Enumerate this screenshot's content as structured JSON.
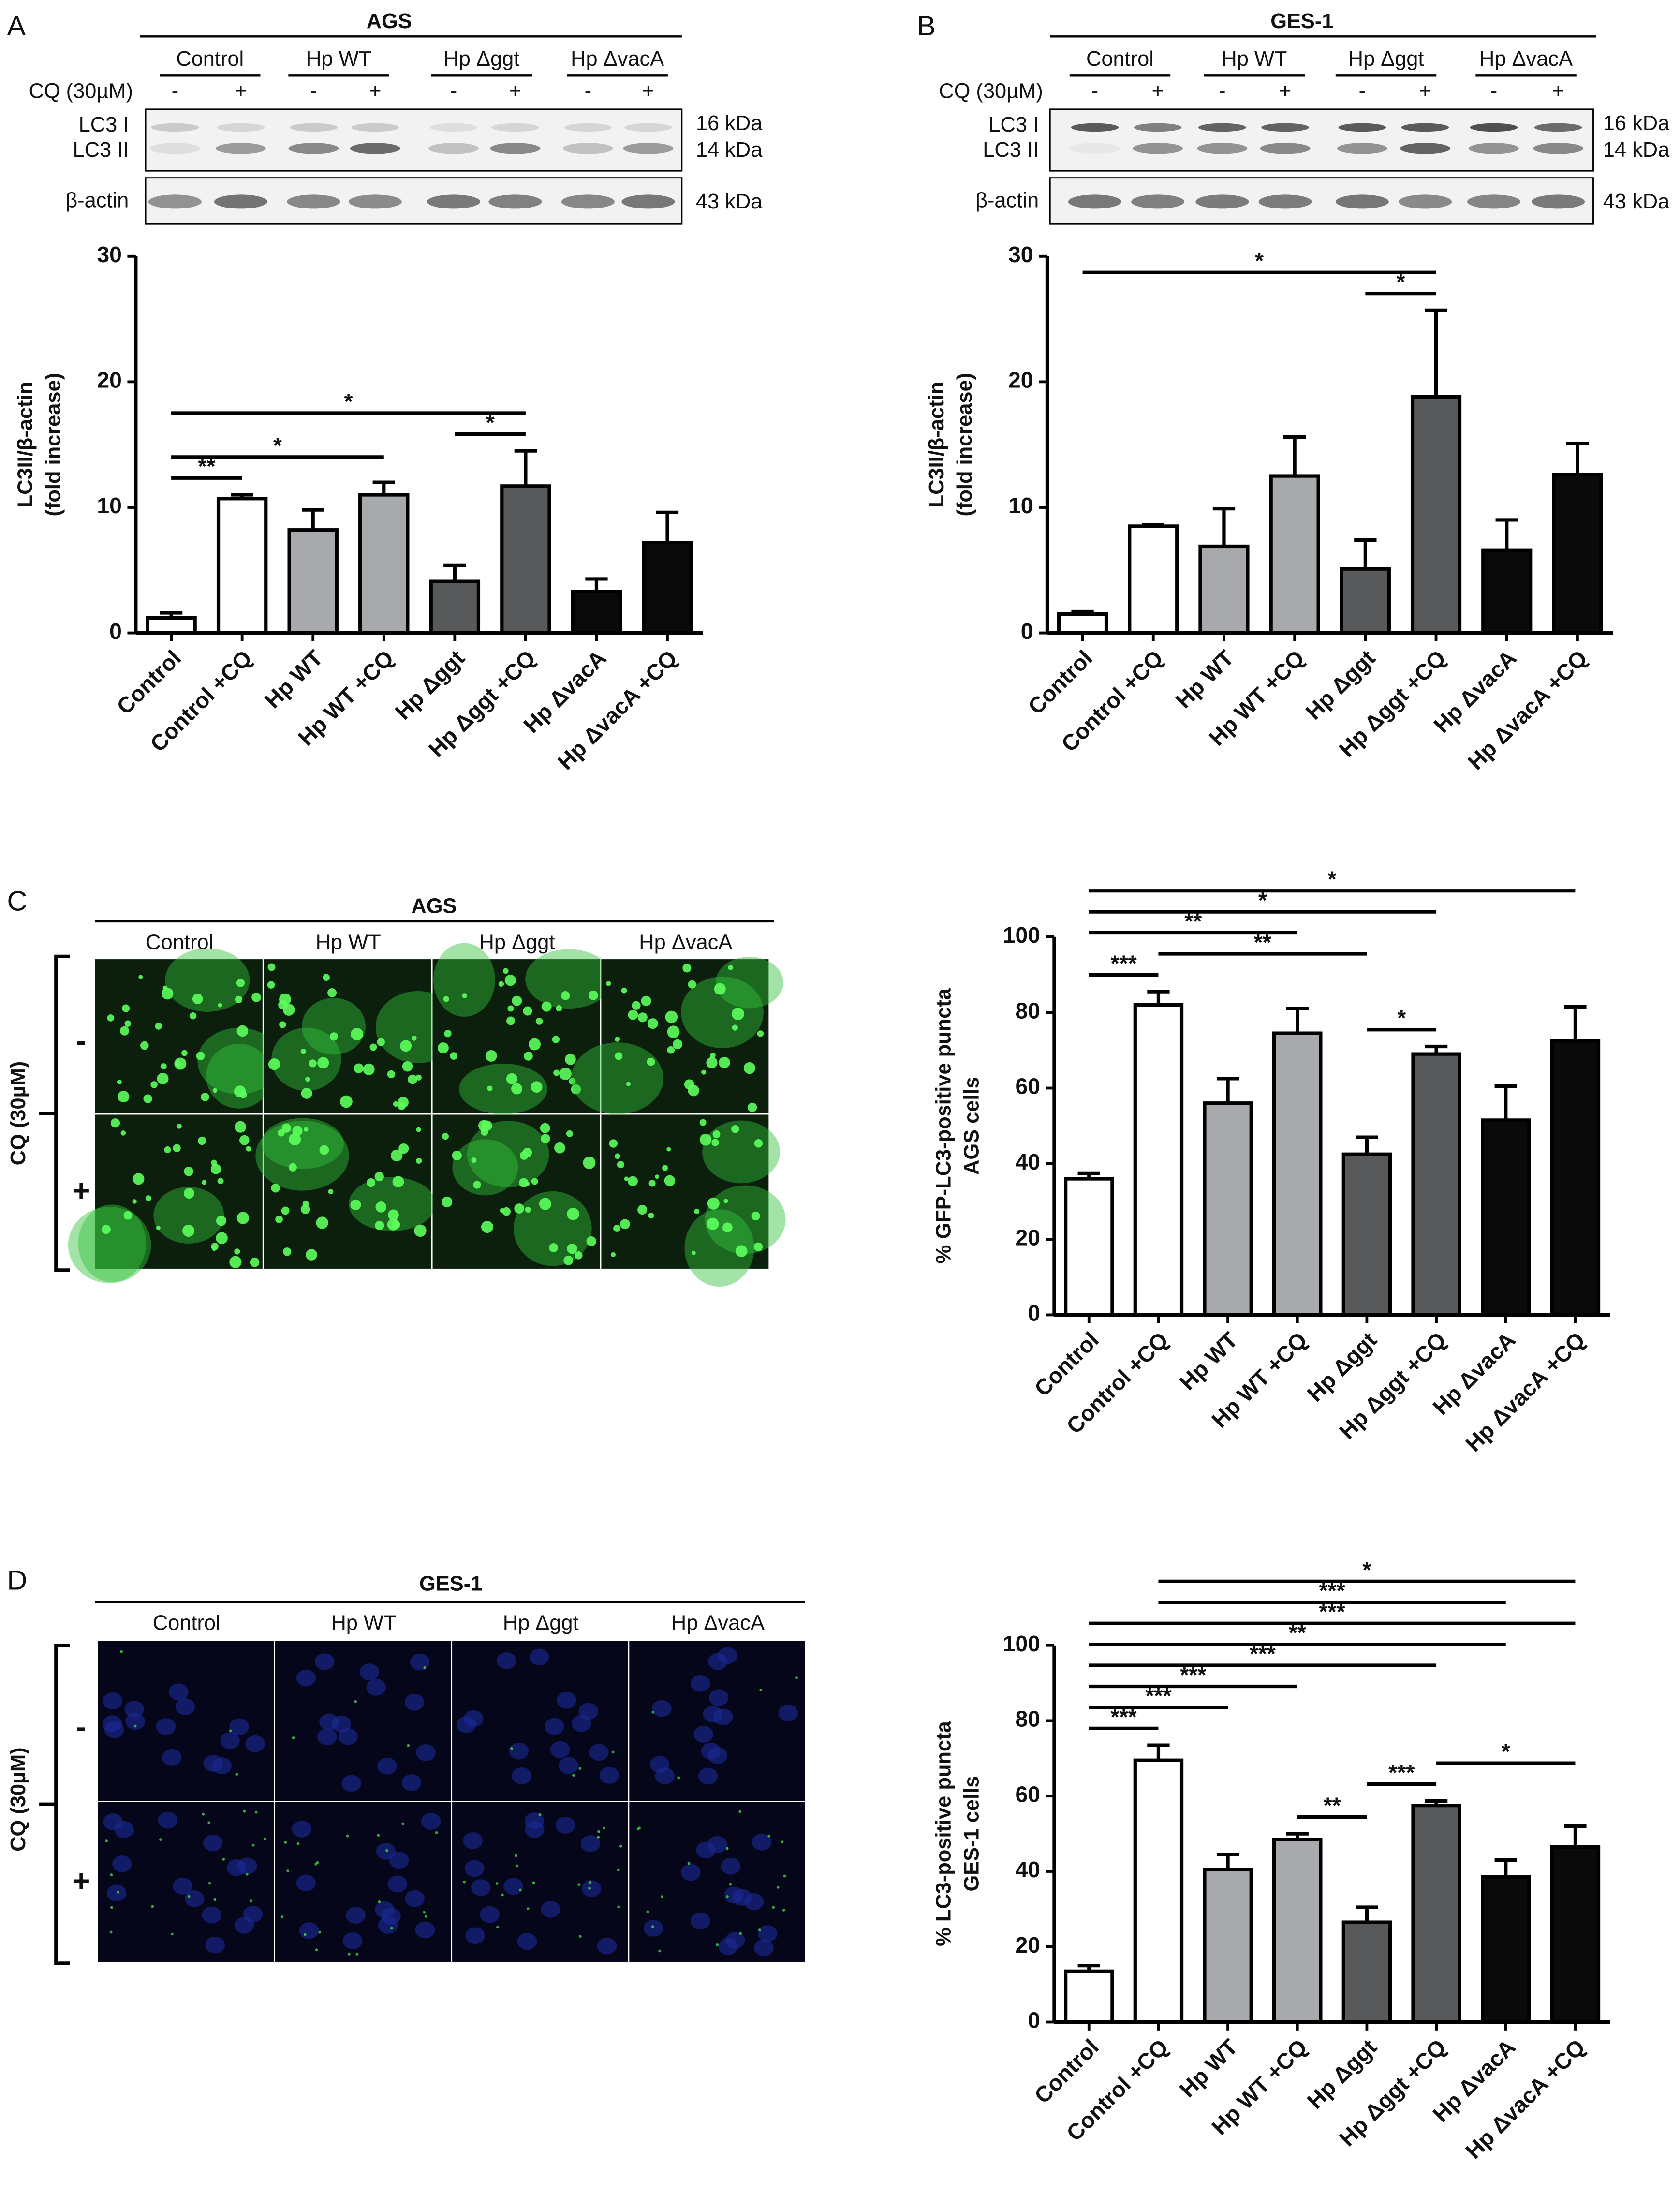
{
  "panel_labels": [
    "A",
    "B",
    "C",
    "D"
  ],
  "blots": [
    {
      "title": "AGS",
      "groups": [
        "Control",
        "Hp WT",
        "Hp Δggt",
        "Hp ΔvacA"
      ],
      "cq_label": "CQ (30µM)",
      "cq_signs": [
        "-",
        "+"
      ],
      "bands": [
        "LC3 I",
        "LC3 II",
        "β-actin"
      ],
      "sizes": [
        "16 kDa",
        "14 kDa",
        "43 kDa"
      ]
    },
    {
      "title": "GES-1",
      "groups": [
        "Control",
        "Hp WT",
        "Hp Δggt",
        "Hp ΔvacA"
      ],
      "cq_label": "CQ (30µM)",
      "cq_signs": [
        "-",
        "+"
      ],
      "bands": [
        "LC3 I",
        "LC3 II",
        "β-actin"
      ],
      "sizes": [
        "16 kDa",
        "14 kDa",
        "43 kDa"
      ]
    }
  ],
  "images": [
    {
      "title": "AGS",
      "groups": [
        "Control",
        "Hp WT",
        "Hp Δggt",
        "Hp ΔvacA"
      ],
      "cq_label": "CQ (30µM)",
      "rows": [
        "-",
        "+"
      ]
    },
    {
      "title": "GES-1",
      "groups": [
        "Control",
        "Hp WT",
        "Hp Δggt",
        "Hp ΔvacA"
      ],
      "cq_label": "CQ (30µM)",
      "rows": [
        "-",
        "+"
      ]
    }
  ],
  "chart_data": [
    {
      "type": "bar",
      "ylabel": [
        "LC3II/β-actin",
        "(fold increase)"
      ],
      "categories": [
        "Control",
        "Control +CQ",
        "Hp WT",
        "Hp WT +CQ",
        "Hp Δggt",
        "Hp Δggt +CQ",
        "Hp ΔvacA",
        "Hp ΔvacA +CQ"
      ],
      "values": [
        1.2,
        10.7,
        8.2,
        11.0,
        4.1,
        11.7,
        3.3,
        7.2
      ],
      "errors": [
        0.4,
        0.3,
        1.6,
        1.0,
        1.3,
        2.8,
        1.0,
        2.4
      ],
      "colors": [
        "#ffffff",
        "#ffffff",
        "#a7a9ac",
        "#a7a9ac",
        "#58595b",
        "#58595b",
        "#0a0a0a",
        "#0a0a0a"
      ],
      "ylim": [
        0,
        30
      ],
      "yticks": [
        0,
        10,
        20,
        30
      ],
      "significance": [
        {
          "label": "**",
          "from": "Control",
          "to": "Control +CQ"
        },
        {
          "label": "*",
          "from": "Hp Δggt",
          "to": "Hp Δggt +CQ"
        },
        {
          "label": "*",
          "from": "Control",
          "to": "Hp WT +CQ"
        },
        {
          "label": "*",
          "from": "Control",
          "to": "Hp Δggt +CQ"
        }
      ]
    },
    {
      "type": "bar",
      "ylabel": [
        "LC3II/β-actin",
        "(fold increase)"
      ],
      "categories": [
        "Control",
        "Control +CQ",
        "Hp WT",
        "Hp WT +CQ",
        "Hp Δggt",
        "Hp Δggt +CQ",
        "Hp ΔvacA",
        "Hp ΔvacA +CQ"
      ],
      "values": [
        1.5,
        8.5,
        6.9,
        12.5,
        5.1,
        18.8,
        6.6,
        12.6
      ],
      "errors": [
        0.2,
        0.1,
        3.0,
        3.1,
        2.3,
        6.9,
        2.4,
        2.5
      ],
      "colors": [
        "#ffffff",
        "#ffffff",
        "#a7a9ac",
        "#a7a9ac",
        "#58595b",
        "#58595b",
        "#0a0a0a",
        "#0a0a0a"
      ],
      "ylim": [
        0,
        30
      ],
      "yticks": [
        0,
        10,
        20,
        30
      ],
      "significance": [
        {
          "label": "*",
          "from": "Hp Δggt",
          "to": "Hp Δggt +CQ"
        },
        {
          "label": "*",
          "from": "Control",
          "to": "Hp Δggt +CQ"
        }
      ]
    },
    {
      "type": "bar",
      "ylabel": [
        "% GFP-LC3-positive puncta",
        "AGS cells"
      ],
      "categories": [
        "Control",
        "Control +CQ",
        "Hp WT",
        "Hp WT +CQ",
        "Hp Δggt",
        "Hp Δggt +CQ",
        "Hp ΔvacA",
        "Hp ΔvacA +CQ"
      ],
      "values": [
        36,
        82,
        56,
        74.5,
        42.5,
        69,
        51.5,
        72.5
      ],
      "errors": [
        1.5,
        3.5,
        6.5,
        6.5,
        4.5,
        2,
        9,
        9
      ],
      "colors": [
        "#ffffff",
        "#ffffff",
        "#a7a9ac",
        "#a7a9ac",
        "#58595b",
        "#58595b",
        "#0a0a0a",
        "#0a0a0a"
      ],
      "ylim": [
        0,
        100
      ],
      "yticks": [
        0,
        20,
        40,
        60,
        80,
        100
      ],
      "significance": [
        {
          "label": "***",
          "from": "Control",
          "to": "Control +CQ"
        },
        {
          "label": "*",
          "from": "Hp Δggt",
          "to": "Hp Δggt +CQ"
        },
        {
          "label": "**",
          "from": "Control +CQ",
          "to": "Hp Δggt"
        },
        {
          "label": "**",
          "from": "Control",
          "to": "Hp WT +CQ"
        },
        {
          "label": "*",
          "from": "Control",
          "to": "Hp Δggt +CQ"
        },
        {
          "label": "*",
          "from": "Control",
          "to": "Hp ΔvacA +CQ"
        }
      ]
    },
    {
      "type": "bar",
      "ylabel": [
        "% LC3-positive puncta",
        "GES-1 cells"
      ],
      "categories": [
        "Control",
        "Control +CQ",
        "Hp WT",
        "Hp WT +CQ",
        "Hp Δggt",
        "Hp Δggt +CQ",
        "Hp ΔvacA",
        "Hp ΔvacA +CQ"
      ],
      "values": [
        13.5,
        69.5,
        40.5,
        48.5,
        26.5,
        57.5,
        38.5,
        46.5
      ],
      "errors": [
        1.5,
        4,
        4,
        1.5,
        4,
        1.2,
        4.5,
        5.5
      ],
      "colors": [
        "#ffffff",
        "#ffffff",
        "#a7a9ac",
        "#a7a9ac",
        "#58595b",
        "#58595b",
        "#0a0a0a",
        "#0a0a0a"
      ],
      "ylim": [
        0,
        100
      ],
      "yticks": [
        0,
        20,
        40,
        60,
        80,
        100
      ],
      "significance": [
        {
          "label": "**",
          "from": "Hp WT +CQ",
          "to": "Hp Δggt"
        },
        {
          "label": "***",
          "from": "Hp Δggt",
          "to": "Hp Δggt +CQ"
        },
        {
          "label": "*",
          "from": "Hp Δggt +CQ",
          "to": "Hp ΔvacA +CQ"
        },
        {
          "label": "***",
          "from": "Control",
          "to": "Control +CQ"
        },
        {
          "label": "***",
          "from": "Control",
          "to": "Hp WT"
        },
        {
          "label": "***",
          "from": "Control",
          "to": "Hp WT +CQ"
        },
        {
          "label": "***",
          "from": "Control",
          "to": "Hp Δggt +CQ"
        },
        {
          "label": "**",
          "from": "Control",
          "to": "Hp ΔvacA"
        },
        {
          "label": "***",
          "from": "Control",
          "to": "Hp ΔvacA +CQ"
        },
        {
          "label": "***",
          "from": "Control +CQ",
          "to": "Hp ΔvacA"
        },
        {
          "label": "*",
          "from": "Control +CQ",
          "to": "Hp ΔvacA +CQ"
        }
      ]
    }
  ]
}
